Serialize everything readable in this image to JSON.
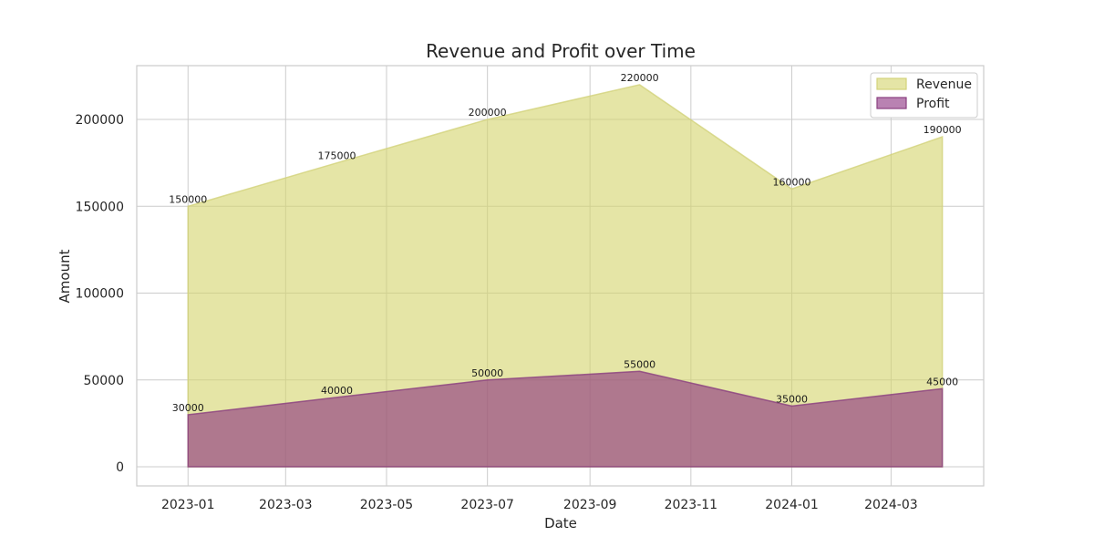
{
  "chart_data": {
    "type": "area",
    "title": "Revenue and Profit over Time",
    "xlabel": "Date",
    "ylabel": "Amount",
    "x": [
      "2023-01-01",
      "2023-04-01",
      "2023-07-01",
      "2023-10-01",
      "2024-01-01",
      "2024-04-01"
    ],
    "x_ticks": [
      "2023-01",
      "2023-03",
      "2023-05",
      "2023-07",
      "2023-09",
      "2023-11",
      "2024-01",
      "2024-03"
    ],
    "y_ticks": [
      0,
      50000,
      100000,
      150000,
      200000
    ],
    "xlim": [
      "2022-12-01",
      "2024-04-26"
    ],
    "ylim": [
      -11000,
      231000
    ],
    "grid": true,
    "legend": "top-right",
    "series": [
      {
        "name": "Revenue",
        "values": [
          150000,
          175000,
          200000,
          220000,
          160000,
          190000
        ],
        "color": "#d4d46a",
        "edge_color": "#d2d27a"
      },
      {
        "name": "Profit",
        "values": [
          30000,
          40000,
          50000,
          55000,
          35000,
          45000
        ],
        "color": "#8a2e7f",
        "edge_color": "#8a3f80"
      }
    ]
  }
}
